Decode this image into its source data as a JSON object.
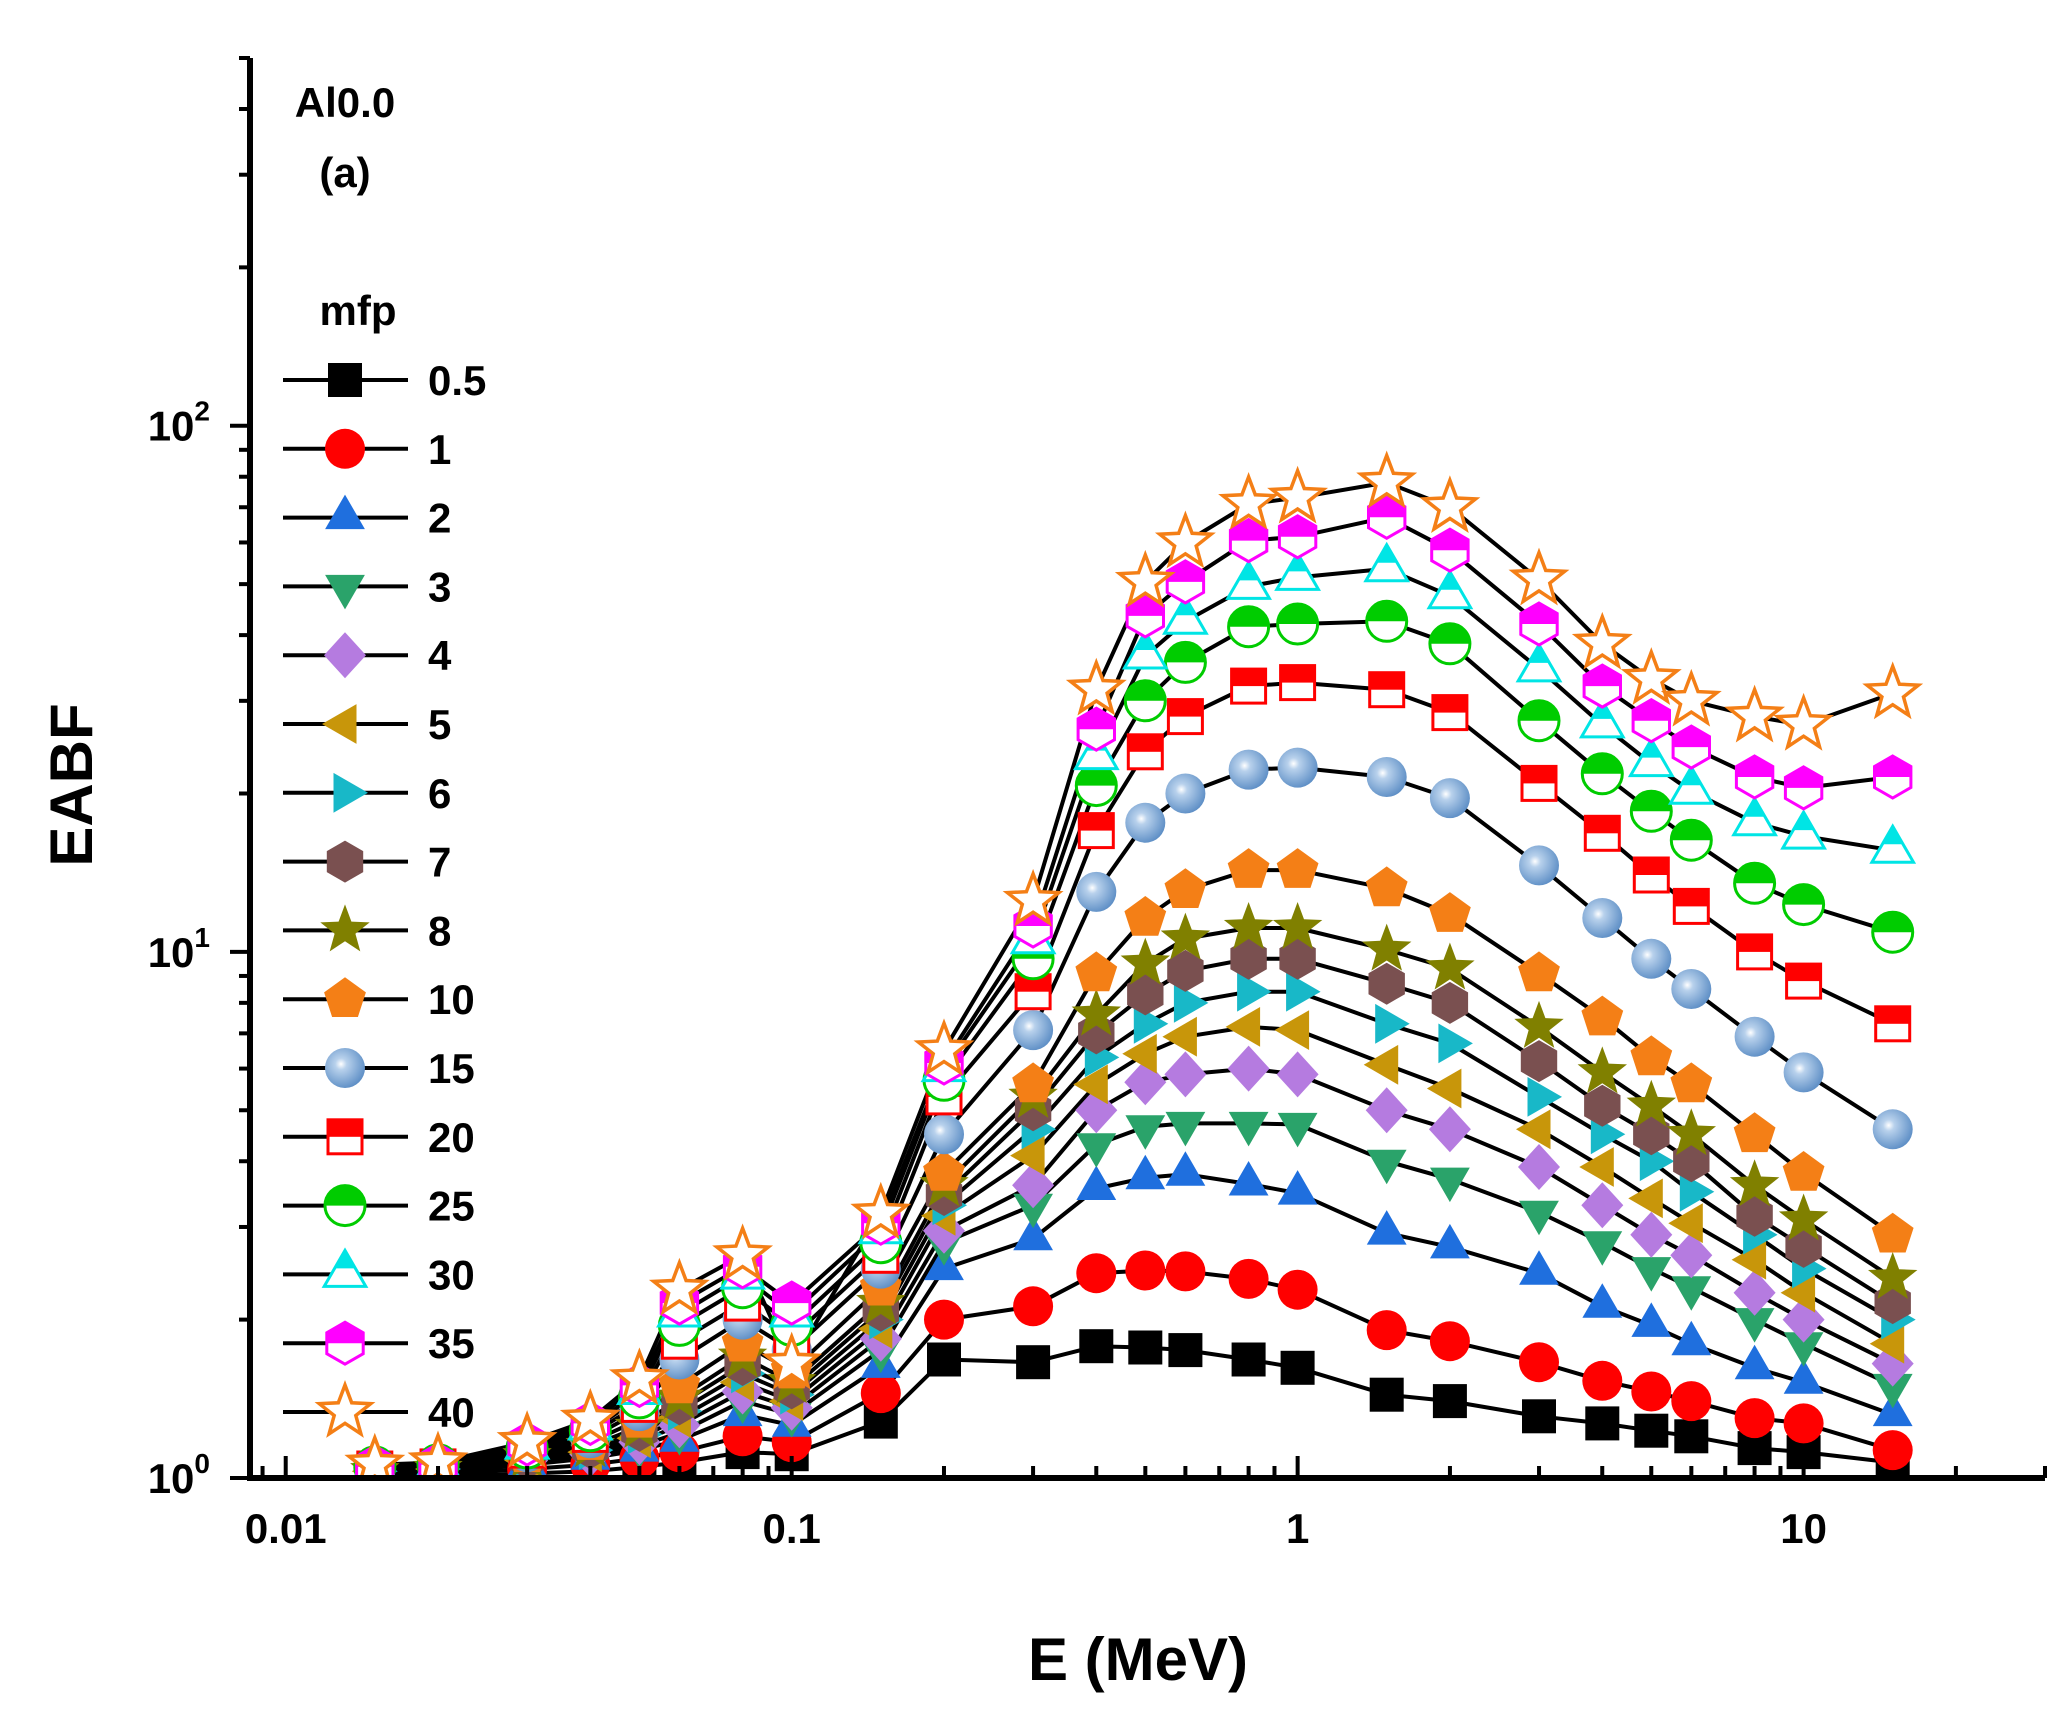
{
  "chart_data": {
    "type": "line",
    "xlabel": "E (MeV)",
    "ylabel": "EABF",
    "annotation_lines": [
      "Al0.0",
      "(a)"
    ],
    "legend_title": "mfp",
    "x_scale": "log",
    "y_scale": "log",
    "xlim": [
      0.0085,
      30
    ],
    "ylim": [
      1,
      500
    ],
    "x_ticks": [
      {
        "value": 0.01,
        "label": "0.01"
      },
      {
        "value": 0.1,
        "label": "0.1"
      },
      {
        "value": 1,
        "label": "1"
      },
      {
        "value": 10,
        "label": "10"
      }
    ],
    "y_ticks": [
      {
        "value": 1,
        "base": "10",
        "exp": "0"
      },
      {
        "value": 10,
        "base": "10",
        "exp": "1"
      },
      {
        "value": 100,
        "base": "10",
        "exp": "2"
      }
    ],
    "legend_placement": "left",
    "x": [
      0.015,
      0.02,
      0.03,
      0.04,
      0.05,
      0.06,
      0.08,
      0.1,
      0.15,
      0.2,
      0.3,
      0.4,
      0.5,
      0.6,
      0.8,
      1,
      1.5,
      2,
      3,
      4,
      5,
      6,
      8,
      10,
      15
    ],
    "series": [
      {
        "name": "0.5",
        "marker": "square",
        "color": "#000000",
        "fill": "solid",
        "values": [
          1.01,
          1.01,
          1.02,
          1.03,
          1.05,
          1.07,
          1.12,
          1.11,
          1.28,
          1.68,
          1.66,
          1.78,
          1.77,
          1.75,
          1.68,
          1.62,
          1.44,
          1.4,
          1.31,
          1.27,
          1.23,
          1.2,
          1.14,
          1.12,
          1.07
        ]
      },
      {
        "name": "1",
        "marker": "circle",
        "color": "#ff0000",
        "fill": "solid",
        "values": [
          1.01,
          1.02,
          1.04,
          1.06,
          1.09,
          1.12,
          1.2,
          1.17,
          1.45,
          2.0,
          2.12,
          2.45,
          2.48,
          2.47,
          2.39,
          2.28,
          1.91,
          1.82,
          1.66,
          1.53,
          1.46,
          1.4,
          1.3,
          1.27,
          1.13
        ]
      },
      {
        "name": "2",
        "marker": "triangle-up",
        "color": "#1f6fde",
        "fill": "solid",
        "values": [
          1.02,
          1.03,
          1.06,
          1.09,
          1.13,
          1.18,
          1.32,
          1.26,
          1.63,
          2.5,
          2.85,
          3.55,
          3.72,
          3.78,
          3.62,
          3.48,
          2.92,
          2.75,
          2.45,
          2.12,
          1.95,
          1.8,
          1.62,
          1.52,
          1.32
        ]
      },
      {
        "name": "3",
        "marker": "triangle-down",
        "color": "#2aa36a",
        "fill": "solid",
        "values": [
          1.02,
          1.03,
          1.07,
          1.1,
          1.15,
          1.22,
          1.4,
          1.32,
          1.75,
          2.8,
          3.3,
          4.3,
          4.65,
          4.72,
          4.72,
          4.7,
          4.0,
          3.7,
          3.2,
          2.8,
          2.5,
          2.3,
          2.0,
          1.8,
          1.5
        ]
      },
      {
        "name": "4",
        "marker": "diamond",
        "color": "#b57be0",
        "fill": "solid",
        "values": [
          1.03,
          1.04,
          1.08,
          1.11,
          1.17,
          1.26,
          1.46,
          1.36,
          1.84,
          2.95,
          3.6,
          5.0,
          5.65,
          5.85,
          6.0,
          5.85,
          5.0,
          4.6,
          3.9,
          3.3,
          2.9,
          2.65,
          2.25,
          2.0,
          1.65
        ]
      },
      {
        "name": "5",
        "marker": "triangle-left",
        "color": "#c8960a",
        "fill": "solid",
        "values": [
          1.03,
          1.04,
          1.08,
          1.12,
          1.19,
          1.3,
          1.52,
          1.4,
          1.92,
          3.15,
          4.1,
          5.6,
          6.4,
          6.9,
          7.2,
          7.1,
          6.1,
          5.5,
          4.6,
          3.9,
          3.4,
          3.05,
          2.6,
          2.25,
          1.8
        ]
      },
      {
        "name": "6",
        "marker": "triangle-right",
        "color": "#18b8c8",
        "fill": "solid",
        "values": [
          1.03,
          1.04,
          1.09,
          1.13,
          1.21,
          1.34,
          1.58,
          1.44,
          2.0,
          3.3,
          4.6,
          6.3,
          7.3,
          8.0,
          8.4,
          8.4,
          7.3,
          6.7,
          5.3,
          4.5,
          4.0,
          3.5,
          2.9,
          2.5,
          2.0
        ]
      },
      {
        "name": "7",
        "marker": "hexagon",
        "color": "#7a5050",
        "fill": "solid",
        "values": [
          1.03,
          1.04,
          1.09,
          1.14,
          1.23,
          1.38,
          1.64,
          1.48,
          2.08,
          3.45,
          5.0,
          7.0,
          8.3,
          9.2,
          9.7,
          9.7,
          8.7,
          8.0,
          6.2,
          5.1,
          4.5,
          4.0,
          3.15,
          2.75,
          2.15
        ]
      },
      {
        "name": "8",
        "marker": "star",
        "color": "#808000",
        "fill": "solid",
        "values": [
          1.03,
          1.04,
          1.1,
          1.15,
          1.25,
          1.42,
          1.7,
          1.52,
          2.15,
          3.6,
          5.3,
          7.6,
          9.5,
          10.6,
          11.1,
          11.1,
          10.1,
          9.3,
          7.2,
          5.9,
          5.1,
          4.5,
          3.6,
          3.1,
          2.4
        ]
      },
      {
        "name": "10",
        "marker": "pentagon",
        "color": "#f47f16",
        "fill": "solid",
        "values": [
          1.04,
          1.05,
          1.11,
          1.17,
          1.29,
          1.5,
          1.8,
          1.6,
          2.3,
          3.8,
          5.6,
          9.1,
          11.6,
          13.1,
          14.3,
          14.3,
          13.2,
          11.8,
          9.1,
          7.5,
          6.3,
          5.6,
          4.5,
          3.8,
          2.9
        ]
      },
      {
        "name": "15",
        "marker": "sphere",
        "color": "#6e9ed2",
        "fill": "solid",
        "values": [
          1.04,
          1.05,
          1.12,
          1.19,
          1.34,
          1.68,
          2.0,
          1.75,
          2.5,
          4.5,
          7.1,
          13.0,
          17.6,
          20.0,
          22.2,
          22.4,
          21.5,
          19.6,
          14.6,
          11.6,
          9.7,
          8.5,
          6.9,
          5.9,
          4.6
        ]
      },
      {
        "name": "20",
        "marker": "square-half",
        "color": "#ff0000",
        "fill": "half",
        "values": [
          1.04,
          1.05,
          1.13,
          1.21,
          1.38,
          1.82,
          2.15,
          1.85,
          2.65,
          5.3,
          8.4,
          17.0,
          24.0,
          28.0,
          32.0,
          32.5,
          31.5,
          28.5,
          20.9,
          16.8,
          14.0,
          12.2,
          10.0,
          8.8,
          7.3
        ]
      },
      {
        "name": "25",
        "marker": "circle-half",
        "color": "#00cc00",
        "fill": "half",
        "values": [
          1.05,
          1.06,
          1.14,
          1.23,
          1.42,
          1.95,
          2.3,
          1.95,
          2.8,
          5.7,
          9.7,
          20.7,
          30.0,
          35.5,
          41.5,
          42.0,
          42.5,
          38.5,
          27.5,
          21.8,
          18.5,
          16.3,
          13.5,
          12.3,
          10.9
        ]
      },
      {
        "name": "30",
        "marker": "triangle-half",
        "color": "#00e5e5",
        "fill": "half",
        "values": [
          1.05,
          1.06,
          1.15,
          1.25,
          1.46,
          2.05,
          2.42,
          2.05,
          2.95,
          6.0,
          10.5,
          23.5,
          36.5,
          42.5,
          49.5,
          51.5,
          53.5,
          47.5,
          34.5,
          27.0,
          22.8,
          20.2,
          17.6,
          16.6,
          15.6
        ]
      },
      {
        "name": "35",
        "marker": "hexagon-half",
        "color": "#ff00ff",
        "fill": "half",
        "values": [
          1.05,
          1.06,
          1.16,
          1.27,
          1.5,
          2.15,
          2.52,
          2.15,
          3.05,
          6.15,
          11.2,
          26.5,
          43.5,
          50.5,
          60.5,
          61.5,
          67.0,
          58.0,
          42.0,
          32.0,
          27.5,
          24.5,
          21.5,
          20.5,
          21.5
        ]
      },
      {
        "name": "40",
        "marker": "star-open",
        "color": "#f47f16",
        "fill": "open",
        "values": [
          1.06,
          1.07,
          1.17,
          1.29,
          1.54,
          2.28,
          2.65,
          1.65,
          3.18,
          6.5,
          12.5,
          31.5,
          50.5,
          60.0,
          71.0,
          73.0,
          78.0,
          70.0,
          51.0,
          38.5,
          33.0,
          30.0,
          28.0,
          27.0,
          31.0
        ]
      }
    ]
  }
}
